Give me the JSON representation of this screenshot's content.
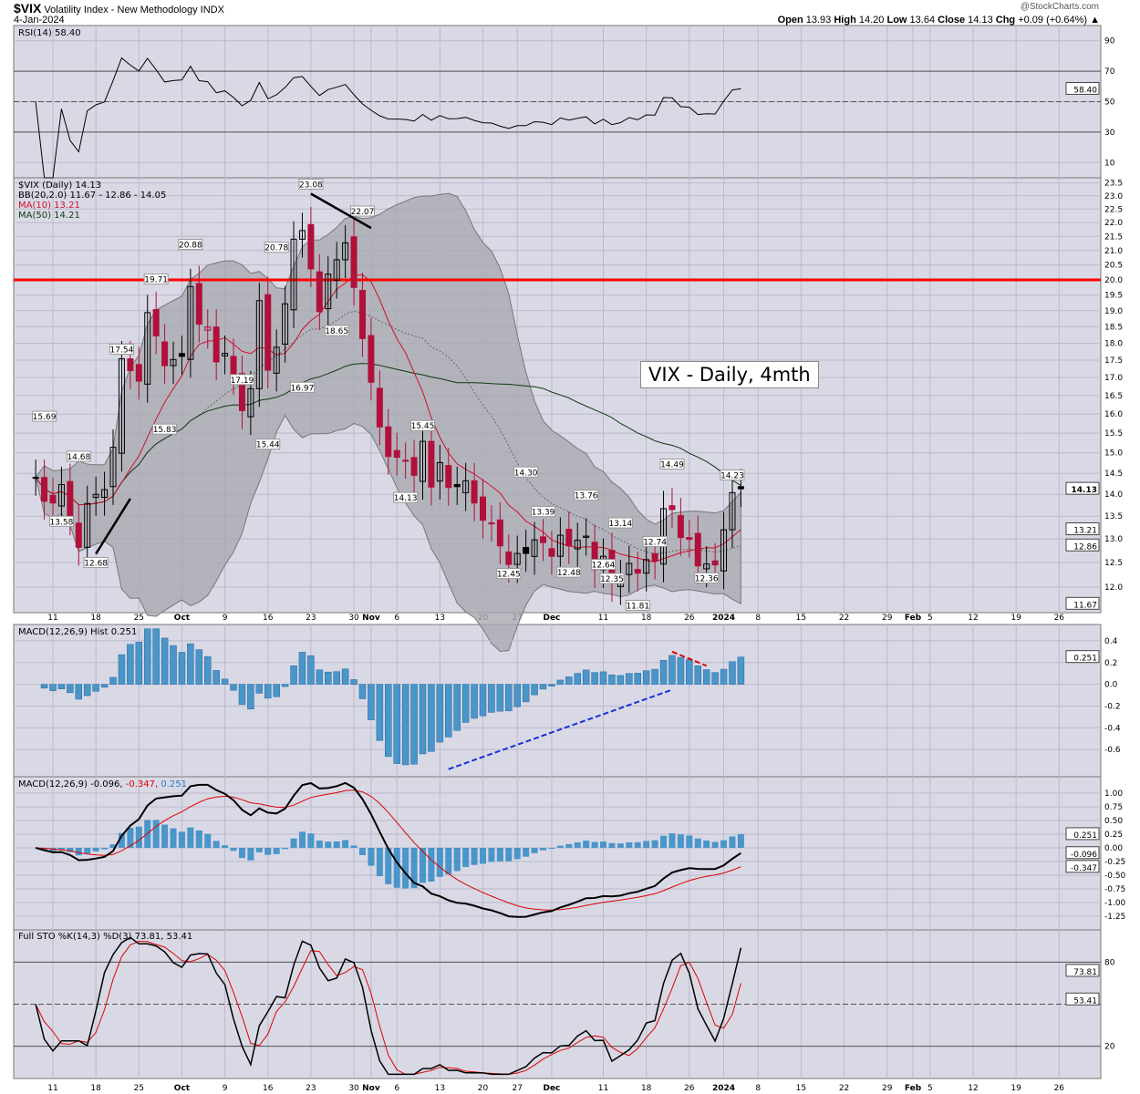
{
  "header": {
    "symbol": "$VIX",
    "name": "Volatility Index - New Methodology",
    "exchange": "INDX",
    "date": "4-Jan-2024",
    "brand": "@StockCharts.com",
    "open_label": "Open",
    "open": "13.93",
    "high_label": "High",
    "high": "14.20",
    "low_label": "Low",
    "low": "13.64",
    "close_label": "Close",
    "close": "14.13",
    "chg_label": "Chg",
    "chg": "+0.09 (+0.64%)"
  },
  "annotation_box": "VIX - Daily, 4mth",
  "colors": {
    "panel": "#d9d9e6",
    "grid": "#b9b9cc",
    "up": "#000000",
    "down": "#b0103a",
    "ma10": "#d0102a",
    "ma50": "#0f3a10",
    "bb": "#a9a9b2",
    "hist": "#4a95c9",
    "signal": "#e00000",
    "resistance": "#ff0000",
    "trend_blue": "#1a2fd8"
  },
  "chart_data": [
    {
      "type": "line",
      "panel": "rsi",
      "legend": "RSI(14) 58.40",
      "yticks": [
        90,
        70,
        50,
        30,
        10
      ],
      "ylim": [
        0,
        100
      ],
      "current": "58.40",
      "levels": [
        70,
        50,
        30
      ]
    },
    {
      "type": "candlestick",
      "panel": "price",
      "scale": "log",
      "legend": [
        "$VIX (Daily) 14.13",
        "BB(20,2.0) 11.67 - 12.86 - 14.05",
        "MA(10) 13.21",
        "MA(50) 14.21"
      ],
      "ylim": [
        11.5,
        23.7
      ],
      "yticks": [
        23.5,
        23.0,
        22.5,
        22.0,
        21.5,
        21.0,
        20.5,
        20.0,
        19.5,
        19.0,
        18.5,
        18.0,
        17.5,
        17.0,
        16.5,
        16.0,
        15.5,
        15.0,
        14.5,
        14.0,
        13.5,
        13.0,
        12.5,
        12.0
      ],
      "current_labels": [
        "14.13",
        "13.21",
        "12.86",
        "11.67"
      ],
      "resistance": 20.0,
      "candles": [
        [
          "2023-09-07",
          14.4
        ],
        [
          "2023-09-08",
          13.84
        ],
        [
          "2023-09-11",
          13.8
        ],
        [
          "2023-09-12",
          14.23
        ],
        [
          "2023-09-13",
          13.48
        ],
        [
          "2023-09-14",
          12.82
        ],
        [
          "2023-09-15",
          13.79
        ],
        [
          "2023-09-18",
          14.0
        ],
        [
          "2023-09-19",
          14.11
        ],
        [
          "2023-09-20",
          15.14
        ],
        [
          "2023-09-21",
          17.54
        ],
        [
          "2023-09-22",
          17.2
        ],
        [
          "2023-09-25",
          16.9
        ],
        [
          "2023-09-26",
          18.94
        ],
        [
          "2023-09-27",
          18.22
        ],
        [
          "2023-09-28",
          17.34
        ],
        [
          "2023-09-29",
          17.52
        ],
        [
          "2023-10-02",
          17.61
        ],
        [
          "2023-10-03",
          19.78
        ],
        [
          "2023-10-04",
          18.58
        ],
        [
          "2023-10-05",
          18.49
        ],
        [
          "2023-10-06",
          17.45
        ],
        [
          "2023-10-09",
          17.7
        ],
        [
          "2023-10-10",
          17.03
        ],
        [
          "2023-10-11",
          16.09
        ],
        [
          "2023-10-12",
          16.69
        ],
        [
          "2023-10-13",
          19.32
        ],
        [
          "2023-10-16",
          17.21
        ],
        [
          "2023-10-17",
          17.88
        ],
        [
          "2023-10-18",
          19.22
        ],
        [
          "2023-10-19",
          21.4
        ],
        [
          "2023-10-20",
          21.71
        ],
        [
          "2023-10-23",
          20.37
        ],
        [
          "2023-10-24",
          18.97
        ],
        [
          "2023-10-25",
          20.19
        ],
        [
          "2023-10-26",
          20.68
        ],
        [
          "2023-10-27",
          21.27
        ],
        [
          "2023-10-30",
          19.75
        ],
        [
          "2023-10-31",
          18.14
        ],
        [
          "2023-11-01",
          16.87
        ],
        [
          "2023-11-02",
          15.66
        ],
        [
          "2023-11-03",
          14.91
        ],
        [
          "2023-11-06",
          14.89
        ],
        [
          "2023-11-07",
          14.81
        ],
        [
          "2023-11-08",
          14.45
        ],
        [
          "2023-11-09",
          15.29
        ],
        [
          "2023-11-10",
          14.17
        ],
        [
          "2023-11-13",
          14.76
        ],
        [
          "2023-11-14",
          14.16
        ],
        [
          "2023-11-15",
          14.18
        ],
        [
          "2023-11-16",
          14.32
        ],
        [
          "2023-11-17",
          13.8
        ],
        [
          "2023-11-20",
          13.41
        ],
        [
          "2023-11-21",
          13.35
        ],
        [
          "2023-11-22",
          12.85
        ],
        [
          "2023-11-24",
          12.46
        ],
        [
          "2023-11-27",
          12.69
        ],
        [
          "2023-11-28",
          12.69
        ],
        [
          "2023-11-29",
          12.98
        ],
        [
          "2023-11-30",
          12.92
        ],
        [
          "2023-12-01",
          12.63
        ],
        [
          "2023-12-04",
          13.08
        ],
        [
          "2023-12-05",
          12.85
        ],
        [
          "2023-12-06",
          12.97
        ],
        [
          "2023-12-07",
          13.06
        ],
        [
          "2023-12-08",
          12.35
        ],
        [
          "2023-12-11",
          12.63
        ],
        [
          "2023-12-12",
          12.07
        ],
        [
          "2023-12-13",
          12.19
        ],
        [
          "2023-12-14",
          12.48
        ],
        [
          "2023-12-15",
          12.28
        ],
        [
          "2023-12-18",
          12.56
        ],
        [
          "2023-12-19",
          12.53
        ],
        [
          "2023-12-20",
          13.67
        ],
        [
          "2023-12-21",
          13.65
        ],
        [
          "2023-12-22",
          13.03
        ],
        [
          "2023-12-26",
          12.99
        ],
        [
          "2023-12-27",
          12.43
        ],
        [
          "2023-12-28",
          12.47
        ],
        [
          "2023-12-29",
          12.45
        ],
        [
          "2024-01-02",
          13.2
        ],
        [
          "2024-01-03",
          14.04
        ],
        [
          "2024-01-04",
          14.13
        ]
      ],
      "price_labels": [
        [
          "2023-09-08",
          "15.69",
          "up"
        ],
        [
          "2023-09-12",
          "13.58",
          "down"
        ],
        [
          "2023-09-14",
          "14.68",
          "up"
        ],
        [
          "2023-09-18",
          "12.68",
          "down"
        ],
        [
          "2023-09-21",
          "17.54",
          "up"
        ],
        [
          "2023-09-27",
          "19.71",
          "up"
        ],
        [
          "2023-09-28",
          "15.83",
          "down"
        ],
        [
          "2023-10-03",
          "20.88",
          "up"
        ],
        [
          "2023-10-11",
          "17.19",
          "down"
        ],
        [
          "2023-10-17",
          "20.78",
          "up"
        ],
        [
          "2023-10-16",
          "15.44",
          "down"
        ],
        [
          "2023-10-20",
          "16.97",
          "down"
        ],
        [
          "2023-10-23",
          "23.08",
          "up"
        ],
        [
          "2023-10-26",
          "18.65",
          "down"
        ],
        [
          "2023-10-31",
          "22.07",
          "up"
        ],
        [
          "2023-11-09",
          "15.45",
          "up"
        ],
        [
          "2023-11-07",
          "14.13",
          "down"
        ],
        [
          "2023-11-28",
          "14.30",
          "up"
        ],
        [
          "2023-11-24",
          "12.45",
          "down"
        ],
        [
          "2023-11-30",
          "13.39",
          "up"
        ],
        [
          "2023-12-05",
          "12.48",
          "down"
        ],
        [
          "2023-12-07",
          "13.76",
          "up"
        ],
        [
          "2023-12-11",
          "12.64",
          "down"
        ],
        [
          "2023-12-13",
          "13.14",
          "up"
        ],
        [
          "2023-12-12",
          "12.35",
          "down"
        ],
        [
          "2023-12-15",
          "11.81",
          "down"
        ],
        [
          "2023-12-19",
          "12.74",
          "up"
        ],
        [
          "2023-12-21",
          "14.49",
          "up"
        ],
        [
          "2023-12-28",
          "12.36",
          "down"
        ],
        [
          "2024-01-03",
          "14.23",
          "up"
        ]
      ]
    },
    {
      "type": "bar",
      "panel": "macd_hist",
      "legend": "MACD(12,26,9) Hist 0.251",
      "yticks": [
        0.4,
        0.2,
        0.0,
        -0.2,
        -0.4,
        -0.6
      ],
      "ylim": [
        -0.85,
        0.55
      ],
      "current": "0.251"
    },
    {
      "type": "line",
      "panel": "macd",
      "legend_prefix": "MACD(12,26,9)",
      "legend_macd": "-0.096,",
      "legend_signal": "-0.347,",
      "legend_hist": "0.251",
      "yticks": [
        1.0,
        0.75,
        0.5,
        0.25,
        0.0,
        -0.25,
        -0.5,
        -0.75,
        -1.0,
        -1.25
      ],
      "ylim": [
        -1.5,
        1.3
      ],
      "current_labels": [
        "0.251",
        "-0.096",
        "-0.347"
      ]
    },
    {
      "type": "line",
      "panel": "stoch",
      "legend": "Full STO %K(14,3) %D(3) 73.81, 53.41",
      "yticks": [
        80,
        20
      ],
      "ylim": [
        -3,
        103
      ],
      "current_labels": [
        "73.81",
        "53.41"
      ]
    }
  ],
  "xticks": [
    [
      "11",
      "2023-09-11"
    ],
    [
      "18",
      "2023-09-18"
    ],
    [
      "25",
      "2023-09-25"
    ],
    [
      "Oct",
      "2023-10-02"
    ],
    [
      "9",
      "2023-10-09"
    ],
    [
      "16",
      "2023-10-16"
    ],
    [
      "23",
      "2023-10-23"
    ],
    [
      "30",
      "2023-10-30"
    ],
    [
      "Nov",
      "2023-11-01"
    ],
    [
      "6",
      "2023-11-06"
    ],
    [
      "13",
      "2023-11-13"
    ],
    [
      "20",
      "2023-11-20"
    ],
    [
      "27",
      "2023-11-27"
    ],
    [
      "Dec",
      "2023-12-01"
    ],
    [
      "11",
      "2023-12-11"
    ],
    [
      "18",
      "2023-12-18"
    ],
    [
      "26",
      "2023-12-26"
    ],
    [
      "2024",
      "2024-01-02"
    ],
    [
      "8",
      "2024-01-08"
    ],
    [
      "15",
      "2024-01-15"
    ],
    [
      "22",
      "2024-01-22"
    ],
    [
      "29",
      "2024-01-29"
    ],
    [
      "Feb",
      "2024-02-01"
    ],
    [
      "5",
      "2024-02-05"
    ],
    [
      "12",
      "2024-02-12"
    ],
    [
      "19",
      "2024-02-19"
    ],
    [
      "26",
      "2024-02-26"
    ]
  ]
}
